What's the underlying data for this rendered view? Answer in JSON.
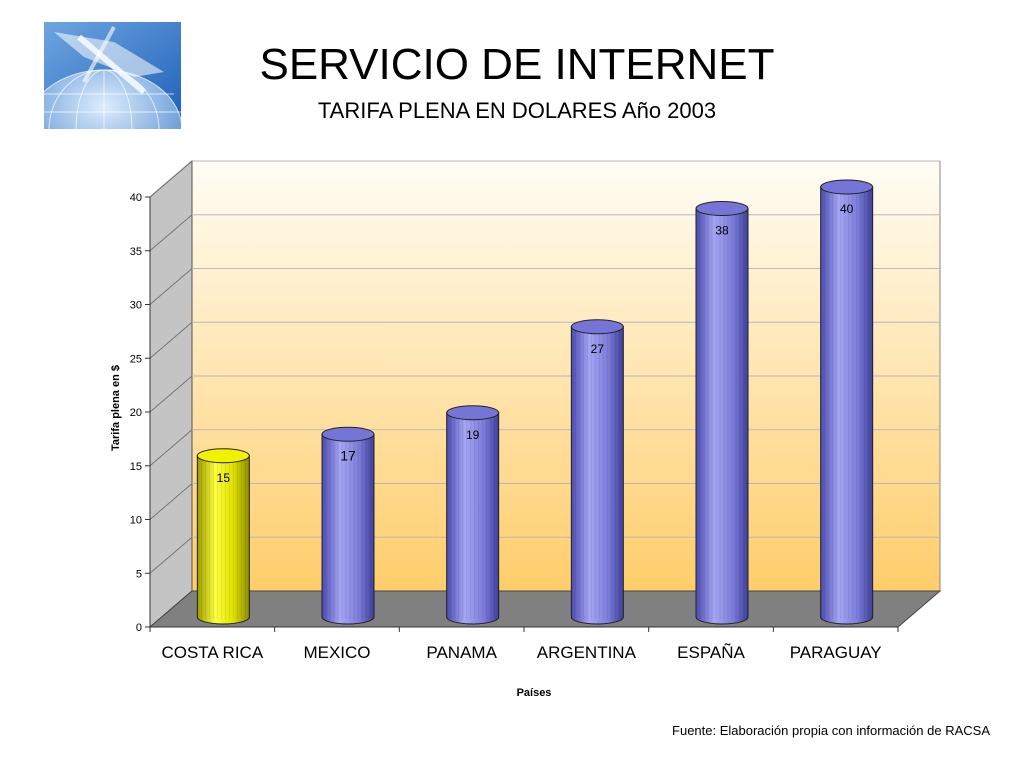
{
  "header": {
    "title": "SERVICIO DE INTERNET",
    "subtitle": "TARIFA PLENA EN DOLARES Año 2003"
  },
  "logo": {
    "icon": "globe-network-icon"
  },
  "source": "Fuente:  Elaboración propia con información de RACSA",
  "chart_data": {
    "type": "bar",
    "style": "3d-cylinder",
    "categories": [
      "COSTA RICA",
      "MEXICO",
      "PANAMA",
      "ARGENTINA",
      "ESPAÑA",
      "PARAGUAY"
    ],
    "values": [
      15,
      17,
      19,
      27,
      38,
      40
    ],
    "data_labels": [
      "15",
      "17",
      "19",
      "27",
      "38",
      "40"
    ],
    "bar_colors": [
      "#e8e800",
      "#8a8ae8",
      "#8a8ae8",
      "#8a8ae8",
      "#8a8ae8",
      "#8a8ae8"
    ],
    "xlabel": "Países",
    "ylabel": "Tarifa plena en $",
    "ylim": [
      0,
      40
    ],
    "yticks": [
      0,
      5,
      10,
      15,
      20,
      25,
      30,
      35,
      40
    ],
    "grid": true,
    "legend": "none",
    "background": {
      "top": "#fffdf6",
      "bottom": "#ffcd6a",
      "side_wall": "#c4c4c4",
      "floor": "#808080"
    }
  }
}
